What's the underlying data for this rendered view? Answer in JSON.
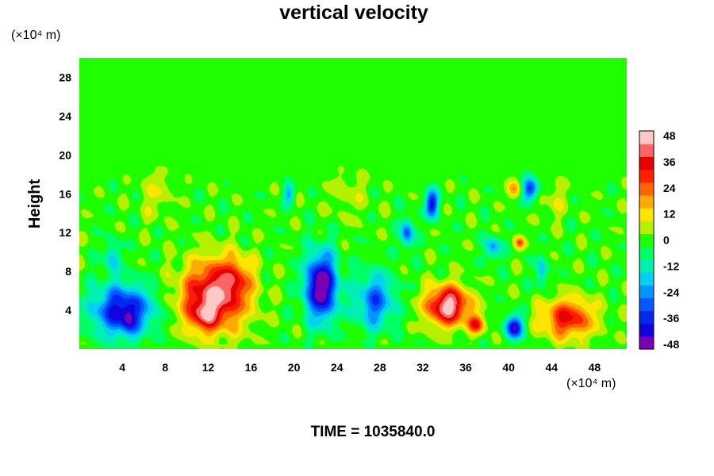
{
  "chart_data": {
    "type": "heatmap",
    "title": "vertical velocity",
    "ylabel": "Height",
    "x_unit_label": "(×10⁴ m)",
    "y_unit_label": "(×10⁴ m)",
    "footer": "TIME = 1035840.0",
    "xlim": [
      0,
      51
    ],
    "ylim": [
      0,
      30
    ],
    "x_ticks": [
      4,
      8,
      12,
      16,
      20,
      24,
      28,
      32,
      36,
      40,
      44,
      48
    ],
    "y_ticks": [
      4,
      8,
      12,
      16,
      20,
      24,
      28
    ],
    "x_tick_labels": [
      "4",
      "8",
      "12",
      "16",
      "20",
      "24",
      "28",
      "32",
      "36",
      "40",
      "44",
      "48"
    ],
    "y_tick_labels": [
      "4",
      "8",
      "12",
      "16",
      "20",
      "24",
      "28"
    ],
    "colorbar": {
      "min": -48,
      "max": 48,
      "ticks": [
        48,
        36,
        24,
        12,
        0,
        -12,
        -24,
        -36,
        -48
      ],
      "tick_labels": [
        "48",
        "36",
        "24",
        "12",
        "0",
        "-12",
        "-24",
        "-36",
        "-48"
      ],
      "colors": [
        "#7a00b4",
        "#1400dc",
        "#0028f0",
        "#005aff",
        "#0096ff",
        "#00d2f0",
        "#00f0b4",
        "#00ff64",
        "#1eff00",
        "#b4f000",
        "#ffe600",
        "#ffaa00",
        "#ff6400",
        "#ff1e00",
        "#e60000",
        "#ff6464",
        "#ffc8c8"
      ]
    },
    "features": [
      {
        "name": "updraft",
        "x": 12.5,
        "y": 5.5,
        "sx": 3.0,
        "sy": 3.5,
        "value": 42
      },
      {
        "name": "updraft-core",
        "x": 11.5,
        "y": 3.5,
        "sx": 1.2,
        "sy": 1.5,
        "value": 18
      },
      {
        "name": "updraft-upper",
        "x": 14.5,
        "y": 7.5,
        "sx": 1.6,
        "sy": 2.2,
        "value": 14
      },
      {
        "name": "updraft",
        "x": 34.3,
        "y": 4.5,
        "sx": 2.0,
        "sy": 2.0,
        "value": 46
      },
      {
        "name": "updraft-small",
        "x": 37.0,
        "y": 2.6,
        "sx": 0.8,
        "sy": 0.9,
        "value": 28
      },
      {
        "name": "updraft",
        "x": 45.5,
        "y": 3.2,
        "sx": 2.4,
        "sy": 2.0,
        "value": 32
      },
      {
        "name": "downdraft",
        "x": 4.0,
        "y": 4.0,
        "sx": 2.8,
        "sy": 2.6,
        "value": -40
      },
      {
        "name": "downdraft-core",
        "x": 4.5,
        "y": 3.0,
        "sx": 0.6,
        "sy": 1.4,
        "value": -12
      },
      {
        "name": "downdraft",
        "x": 22.5,
        "y": 6.5,
        "sx": 1.5,
        "sy": 3.4,
        "value": -50
      },
      {
        "name": "downdraft",
        "x": 27.5,
        "y": 5.0,
        "sx": 1.8,
        "sy": 2.8,
        "value": -28
      },
      {
        "name": "downdraft-small",
        "x": 40.5,
        "y": 2.3,
        "sx": 0.8,
        "sy": 1.2,
        "value": -42
      },
      {
        "name": "downdraft-upper",
        "x": 32.8,
        "y": 15.0,
        "sx": 0.6,
        "sy": 1.4,
        "value": -40
      },
      {
        "name": "downdraft-upper",
        "x": 42.0,
        "y": 16.5,
        "sx": 0.8,
        "sy": 1.2,
        "value": -34
      },
      {
        "name": "downdraft-mid",
        "x": 30.5,
        "y": 12.0,
        "sx": 0.6,
        "sy": 1.5,
        "value": -30
      },
      {
        "name": "downdraft-mid",
        "x": 38.5,
        "y": 10.5,
        "sx": 0.7,
        "sy": 1.2,
        "value": -24
      },
      {
        "name": "updraft-upper",
        "x": 40.5,
        "y": 16.5,
        "sx": 0.7,
        "sy": 0.9,
        "value": 18
      },
      {
        "name": "updraft-mid",
        "x": 41.0,
        "y": 11.0,
        "sx": 0.5,
        "sy": 0.6,
        "value": 22
      },
      {
        "name": "updraft-upper",
        "x": 7.0,
        "y": 16.0,
        "sx": 1.4,
        "sy": 2.5,
        "value": 8
      },
      {
        "name": "updraft-upper",
        "x": 25.0,
        "y": 16.0,
        "sx": 2.0,
        "sy": 2.5,
        "value": 6
      },
      {
        "name": "updraft-upper",
        "x": 44.0,
        "y": 15.5,
        "sx": 1.5,
        "sy": 2.0,
        "value": 7
      },
      {
        "name": "downdraft-mid",
        "x": 3.0,
        "y": 9.5,
        "sx": 0.8,
        "sy": 1.6,
        "value": -16
      },
      {
        "name": "downdraft-mid",
        "x": 19.5,
        "y": 16.0,
        "sx": 0.5,
        "sy": 1.0,
        "value": -20
      },
      {
        "name": "downdraft-mid",
        "x": 43.0,
        "y": 8.0,
        "sx": 0.5,
        "sy": 1.6,
        "value": -20
      }
    ]
  }
}
